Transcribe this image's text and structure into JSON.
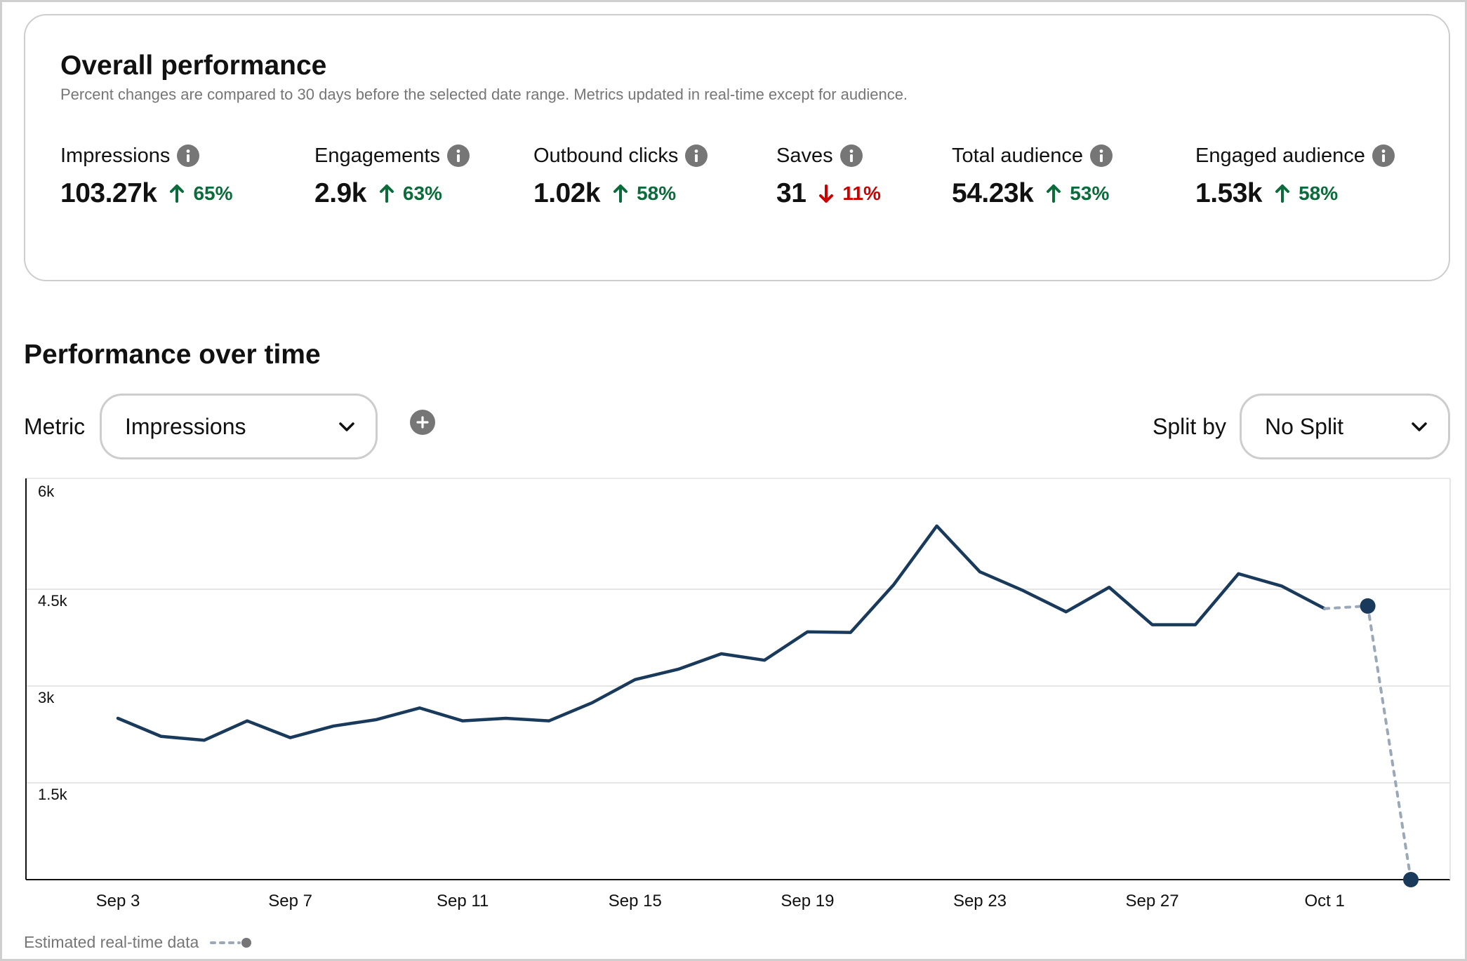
{
  "overall": {
    "title": "Overall performance",
    "subtitle": "Percent changes are compared to 30 days before the selected date range. Metrics updated in real-time except for audience.",
    "metrics": [
      {
        "label": "Impressions",
        "value": "103.27k",
        "delta": "65%",
        "direction": "up"
      },
      {
        "label": "Engagements",
        "value": "2.9k",
        "delta": "63%",
        "direction": "up"
      },
      {
        "label": "Outbound clicks",
        "value": "1.02k",
        "delta": "58%",
        "direction": "up"
      },
      {
        "label": "Saves",
        "value": "31",
        "delta": "11%",
        "direction": "down"
      },
      {
        "label": "Total audience",
        "value": "54.23k",
        "delta": "53%",
        "direction": "up"
      },
      {
        "label": "Engaged audience",
        "value": "1.53k",
        "delta": "58%",
        "direction": "up"
      }
    ],
    "icons": {
      "info": "info-icon",
      "up": "arrow-up-icon",
      "down": "arrow-down-icon"
    }
  },
  "performance": {
    "title": "Performance over time",
    "metric_label": "Metric",
    "metric_select": "Impressions",
    "split_label": "Split by",
    "split_select": "No Split",
    "add_icon": "plus-circle-icon",
    "chevron_icon": "chevron-down-icon"
  },
  "legend": {
    "label": "Estimated real-time data"
  },
  "colors": {
    "line": "#1a3a5c",
    "up": "#0b6b3a",
    "down": "#cc0000",
    "estimate": "#9aa8b8",
    "muted": "#767676"
  },
  "chart_data": {
    "type": "line",
    "title": "",
    "xlabel": "",
    "ylabel": "",
    "ylim": [
      0,
      6000
    ],
    "yticks": [
      1500,
      3000,
      4500,
      6000
    ],
    "ytick_labels": [
      "1.5k",
      "3k",
      "4.5k",
      "6k"
    ],
    "x_tick_labels": [
      "Sep 3",
      "Sep 7",
      "Sep 11",
      "Sep 15",
      "Sep 19",
      "Sep 23",
      "Sep 27",
      "Oct 1"
    ],
    "grid": true,
    "series": [
      {
        "x": [
          "Sep 3",
          "Sep 4",
          "Sep 5",
          "Sep 6",
          "Sep 7",
          "Sep 8",
          "Sep 9",
          "Sep 10",
          "Sep 11",
          "Sep 12",
          "Sep 13",
          "Sep 14",
          "Sep 15",
          "Sep 16",
          "Sep 17",
          "Sep 18",
          "Sep 19",
          "Sep 20",
          "Sep 21",
          "Sep 22",
          "Sep 23",
          "Sep 24",
          "Sep 25",
          "Sep 26",
          "Sep 27",
          "Sep 28",
          "Sep 29",
          "Sep 30",
          "Oct 1"
        ],
        "values": [
          2500,
          2220,
          2160,
          2460,
          2200,
          2380,
          2480,
          2660,
          2460,
          2500,
          2460,
          2740,
          3100,
          3260,
          3500,
          3400,
          3840,
          3830,
          4570,
          5480,
          4770,
          4480,
          4150,
          4530,
          3950,
          3950,
          4740,
          4550,
          4200
        ]
      },
      {
        "name": "Estimated real-time data",
        "x": [
          "Oct 1",
          "Oct 2",
          "Oct 3"
        ],
        "values": [
          4200,
          4240,
          0
        ],
        "style": "dashed"
      }
    ]
  }
}
